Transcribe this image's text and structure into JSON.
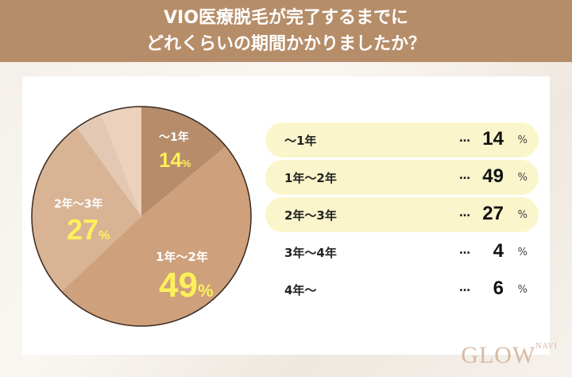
{
  "header": {
    "line1": "VIO医療脱毛が完了するまでに",
    "line2": "どれくらいの期間かかりましたか？"
  },
  "chart_data": {
    "type": "pie",
    "title": "VIO医療脱毛が完了するまでにどれくらいの期間かかりましたか？",
    "categories": [
      "〜1年",
      "1年〜2年",
      "2年〜3年",
      "3年〜4年",
      "4年〜"
    ],
    "values": [
      14,
      49,
      27,
      4,
      6
    ],
    "unit": "%",
    "colors": [
      "#b68c6a",
      "#cea07b",
      "#d8b394",
      "#e3c8b3",
      "#ecd2bd"
    ]
  },
  "pie_labels": [
    {
      "label": "〜1年",
      "value": "14",
      "pct": "%"
    },
    {
      "label": "1年〜2年",
      "value": "49",
      "pct": "%"
    },
    {
      "label": "2年〜3年",
      "value": "27",
      "pct": "%"
    }
  ],
  "legend": [
    {
      "label": "〜1年",
      "dots": "…",
      "value": "14",
      "pct": "%"
    },
    {
      "label": "1年〜2年",
      "dots": "…",
      "value": "49",
      "pct": "%"
    },
    {
      "label": "2年〜3年",
      "dots": "…",
      "value": "27",
      "pct": "%"
    },
    {
      "label": "3年〜4年",
      "dots": "…",
      "value": "4",
      "pct": "%"
    },
    {
      "label": "4年〜",
      "dots": "…",
      "value": "6",
      "pct": "%"
    }
  ],
  "logo": {
    "text": "GLOW",
    "sub": "NAVI"
  }
}
